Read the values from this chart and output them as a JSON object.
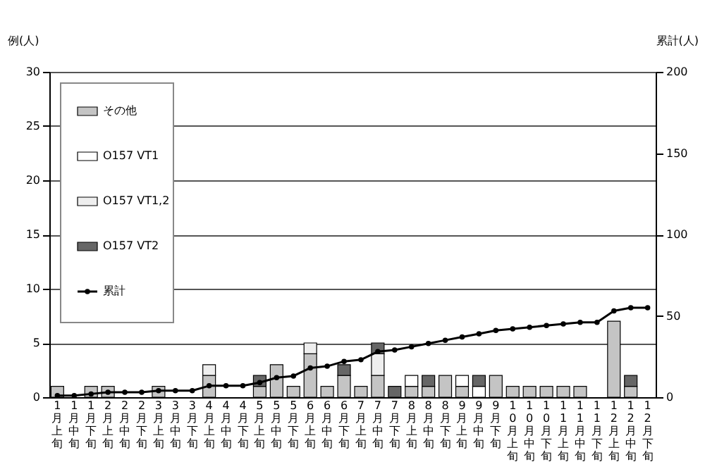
{
  "chart_data": {
    "type": "bar",
    "stacked": true,
    "ylabel": "例(人)",
    "y2label": "累計(人)",
    "categories": [
      "1月上旬",
      "1月中旬",
      "1月下旬",
      "2月上旬",
      "2月中旬",
      "2月下旬",
      "3月上旬",
      "3月中旬",
      "3月下旬",
      "4月上旬",
      "4月中旬",
      "4月下旬",
      "5月上旬",
      "5月中旬",
      "5月下旬",
      "6月上旬",
      "6月中旬",
      "6月下旬",
      "7月上旬",
      "7月中旬",
      "7月下旬",
      "8月上旬",
      "8月中旬",
      "8月下旬",
      "9月上旬",
      "9月中旬",
      "9月下旬",
      "10月上旬",
      "10月中旬",
      "10月下旬",
      "11月上旬",
      "11月中旬",
      "11月下旬",
      "12月上旬",
      "12月中旬",
      "12月下旬"
    ],
    "series": [
      {
        "name": "その他",
        "color": "#c4c4c4",
        "values": [
          1,
          0,
          1,
          1,
          0,
          0,
          1,
          0,
          0,
          2,
          0,
          0,
          1,
          3,
          1,
          4,
          1,
          2,
          1,
          2,
          0,
          1,
          1,
          2,
          1,
          0,
          2,
          1,
          1,
          1,
          1,
          1,
          0,
          7,
          1,
          0
        ]
      },
      {
        "name": "O157 VT1",
        "color": "#ffffff",
        "values": [
          0,
          0,
          0,
          0,
          0,
          0,
          0,
          0,
          0,
          0,
          0,
          0,
          0,
          0,
          0,
          0,
          0,
          0,
          0,
          0,
          0,
          1,
          0,
          0,
          1,
          1,
          0,
          0,
          0,
          0,
          0,
          0,
          0,
          0,
          0,
          0
        ]
      },
      {
        "name": "O157 VT1,2",
        "color": "#eeeeee",
        "values": [
          0,
          0,
          0,
          0,
          0,
          0,
          0,
          0,
          0,
          1,
          0,
          0,
          0,
          0,
          0,
          1,
          0,
          0,
          0,
          2,
          0,
          0,
          0,
          0,
          0,
          0,
          0,
          0,
          0,
          0,
          0,
          0,
          0,
          0,
          0,
          0
        ]
      },
      {
        "name": "O157 VT2",
        "color": "#666666",
        "values": [
          0,
          0,
          0,
          0,
          0,
          0,
          0,
          0,
          0,
          0,
          0,
          0,
          1,
          0,
          0,
          0,
          0,
          1,
          0,
          1,
          1,
          0,
          1,
          0,
          0,
          1,
          0,
          0,
          0,
          0,
          0,
          0,
          0,
          0,
          1,
          0
        ]
      },
      {
        "name": "累計",
        "type": "line",
        "axis": "y2",
        "color": "#000000",
        "marker": "circle",
        "values": [
          1,
          1,
          2,
          3,
          3,
          3,
          4,
          4,
          4,
          7,
          7,
          7,
          9,
          12,
          13,
          18,
          19,
          22,
          23,
          28,
          29,
          31,
          33,
          35,
          37,
          39,
          41,
          42,
          43,
          44,
          45,
          46,
          46,
          53,
          55,
          55
        ]
      }
    ],
    "ylim": [
      0,
      30
    ],
    "yticks": [
      0,
      5,
      10,
      15,
      20,
      25,
      30
    ],
    "y2lim": [
      0,
      200
    ],
    "y2ticks": [
      0,
      50,
      100,
      150,
      200
    ],
    "grid": "y",
    "legend": "top left"
  }
}
